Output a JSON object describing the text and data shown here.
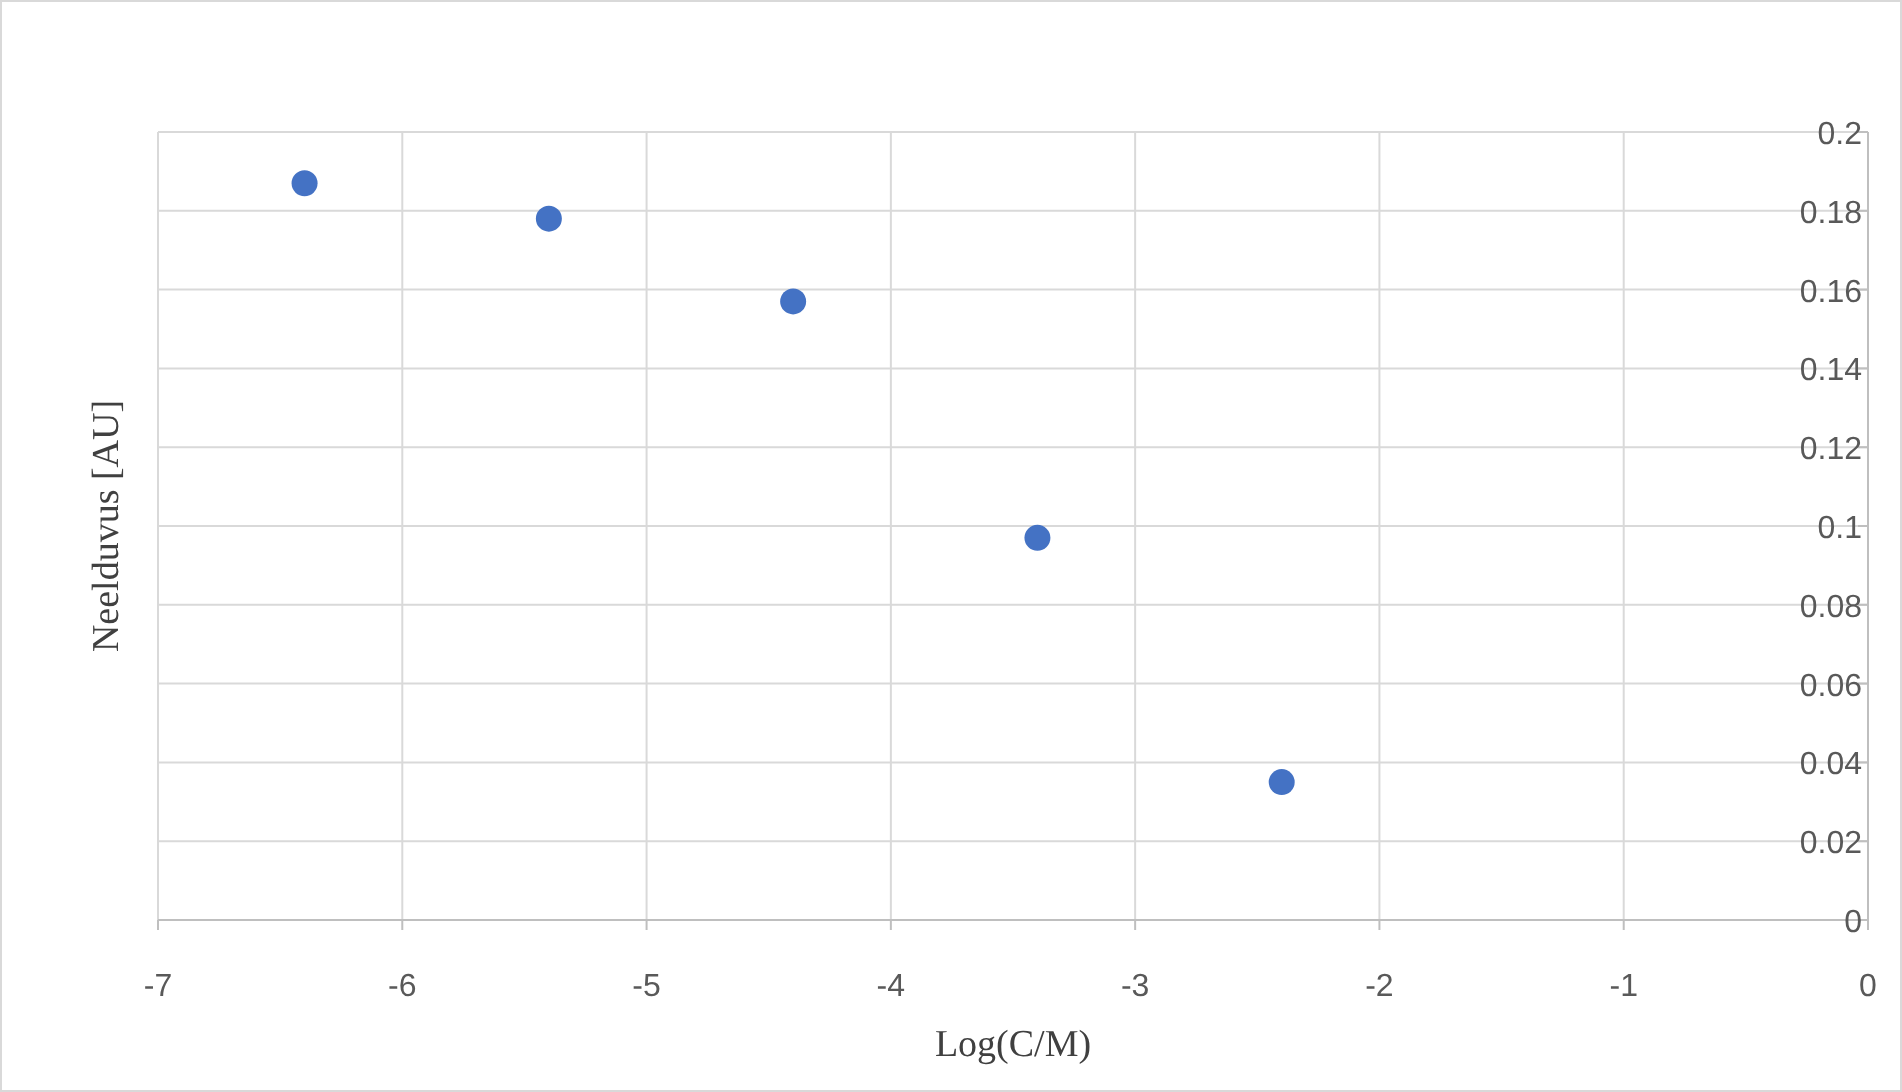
{
  "chart_data": {
    "type": "scatter",
    "xlabel": "Log(C/M)",
    "ylabel": "Neelduvus [AU]",
    "x": [
      -6.4,
      -5.4,
      -4.4,
      -3.4,
      -2.4
    ],
    "series": [
      {
        "color": "#4472c4",
        "values": [
          0.187,
          0.178,
          0.157,
          0.097,
          0.035
        ]
      }
    ],
    "xlim": [
      -7,
      0
    ],
    "xticks": [
      -7,
      -6,
      -5,
      -4,
      -3,
      -2,
      -1,
      0
    ],
    "ylim": [
      0,
      0.2
    ],
    "yticks": [
      0,
      0.02,
      0.04,
      0.06,
      0.08,
      0.1,
      0.12,
      0.14,
      0.16,
      0.18,
      0.2
    ],
    "grid": true,
    "marker": "circle"
  }
}
